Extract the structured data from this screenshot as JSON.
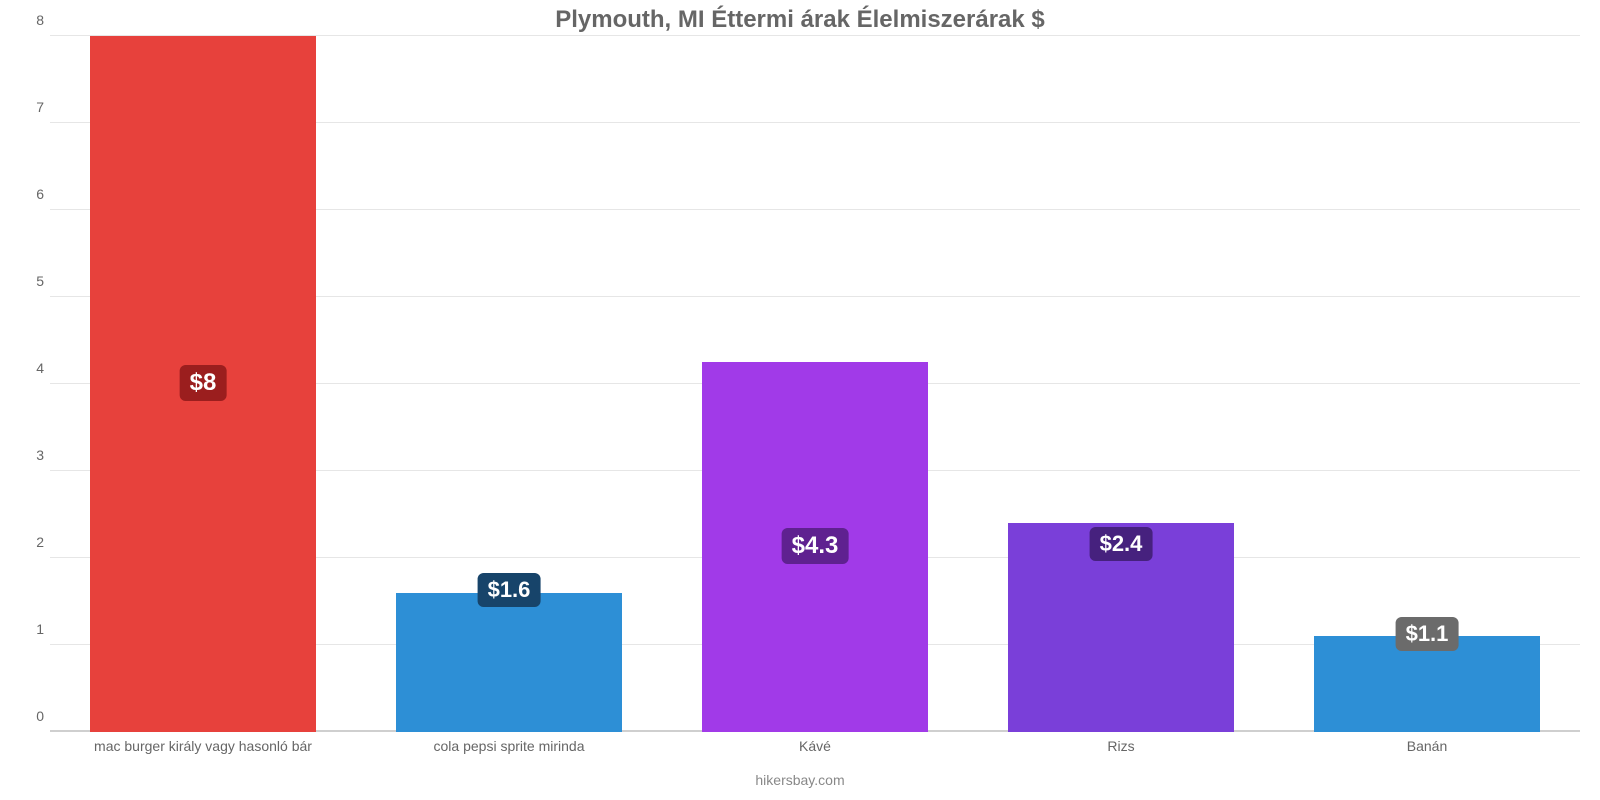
{
  "chart": {
    "type": "bar",
    "title": "Plymouth, MI Éttermi árak Élelmiszerárak $",
    "title_color": "#666666",
    "title_fontsize": 24,
    "caption": "hikersbay.com",
    "caption_color": "#888888",
    "caption_fontsize": 14,
    "background_color": "#ffffff",
    "grid_color": "#e6e6e6",
    "baseline_color": "#cfcfcf",
    "axis_label_color": "#666666",
    "axis_label_fontsize": 14,
    "y_axis": {
      "min": 0,
      "max": 8,
      "tick_step": 1,
      "ticks": [
        0,
        1,
        2,
        3,
        4,
        5,
        6,
        7,
        8
      ]
    },
    "bar_width_ratio": 0.74,
    "badge_padding": "4px 10px",
    "badge_border_radius": 6,
    "items": [
      {
        "label": "mac burger király vagy hasonló bár",
        "value": 8,
        "display": "$8",
        "bar_color": "#e7413c",
        "badge_bg": "#9b1e1e",
        "badge_text_color": "#ffffff",
        "badge_fontsize": 24,
        "badge_pos": "middle"
      },
      {
        "label": "cola pepsi sprite mirinda",
        "value": 1.6,
        "display": "$1.6",
        "bar_color": "#2d8fd6",
        "badge_bg": "#17446a",
        "badge_text_color": "#ffffff",
        "badge_fontsize": 22,
        "badge_pos": "top-outside"
      },
      {
        "label": "Kávé",
        "value": 4.25,
        "display": "$4.3",
        "bar_color": "#a13ae8",
        "badge_bg": "#5f2190",
        "badge_text_color": "#ffffff",
        "badge_fontsize": 24,
        "badge_pos": "middle"
      },
      {
        "label": "Rizs",
        "value": 2.4,
        "display": "$2.4",
        "bar_color": "#7a3fd9",
        "badge_bg": "#46217e",
        "badge_text_color": "#ffffff",
        "badge_fontsize": 22,
        "badge_pos": "top-inside"
      },
      {
        "label": "Banán",
        "value": 1.1,
        "display": "$1.1",
        "bar_color": "#2d8fd6",
        "badge_bg": "#6b6b6b",
        "badge_text_color": "#ffffff",
        "badge_fontsize": 22,
        "badge_pos": "top-outside"
      }
    ]
  }
}
